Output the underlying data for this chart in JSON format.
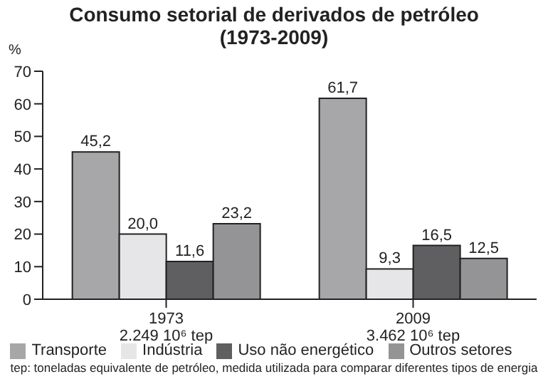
{
  "chart_data": {
    "type": "bar",
    "title": "Consumo setorial de derivados de petróleo (1973-2009)",
    "ylabel": "%",
    "categories": [
      "1973\n2.249 10⁶ tep",
      "2009\n3.462 10⁶ tep"
    ],
    "series": [
      {
        "name": "Transporte",
        "color": "#a7a7a9",
        "values": [
          45.2,
          61.7
        ],
        "value_labels": [
          "45,2",
          "61,7"
        ]
      },
      {
        "name": "Indústria",
        "color": "#e6e6e8",
        "values": [
          20.0,
          9.3
        ],
        "value_labels": [
          "20,0",
          "9,3"
        ]
      },
      {
        "name": "Uso não energético",
        "color": "#5f5f61",
        "values": [
          11.6,
          16.5
        ],
        "value_labels": [
          "11,6",
          "16,5"
        ]
      },
      {
        "name": "Outros setores",
        "color": "#949496",
        "values": [
          23.2,
          12.5
        ],
        "value_labels": [
          "23,2",
          "12,5"
        ]
      }
    ],
    "ylim": [
      0,
      70
    ],
    "yticks": [
      0,
      10,
      20,
      30,
      40,
      50,
      60,
      70
    ],
    "grid": false,
    "legend": "bottom",
    "annotations": [
      "tep: toneladas equivalente de petróleo, medida utilizada para comparar diferentes tipos de energia"
    ]
  }
}
